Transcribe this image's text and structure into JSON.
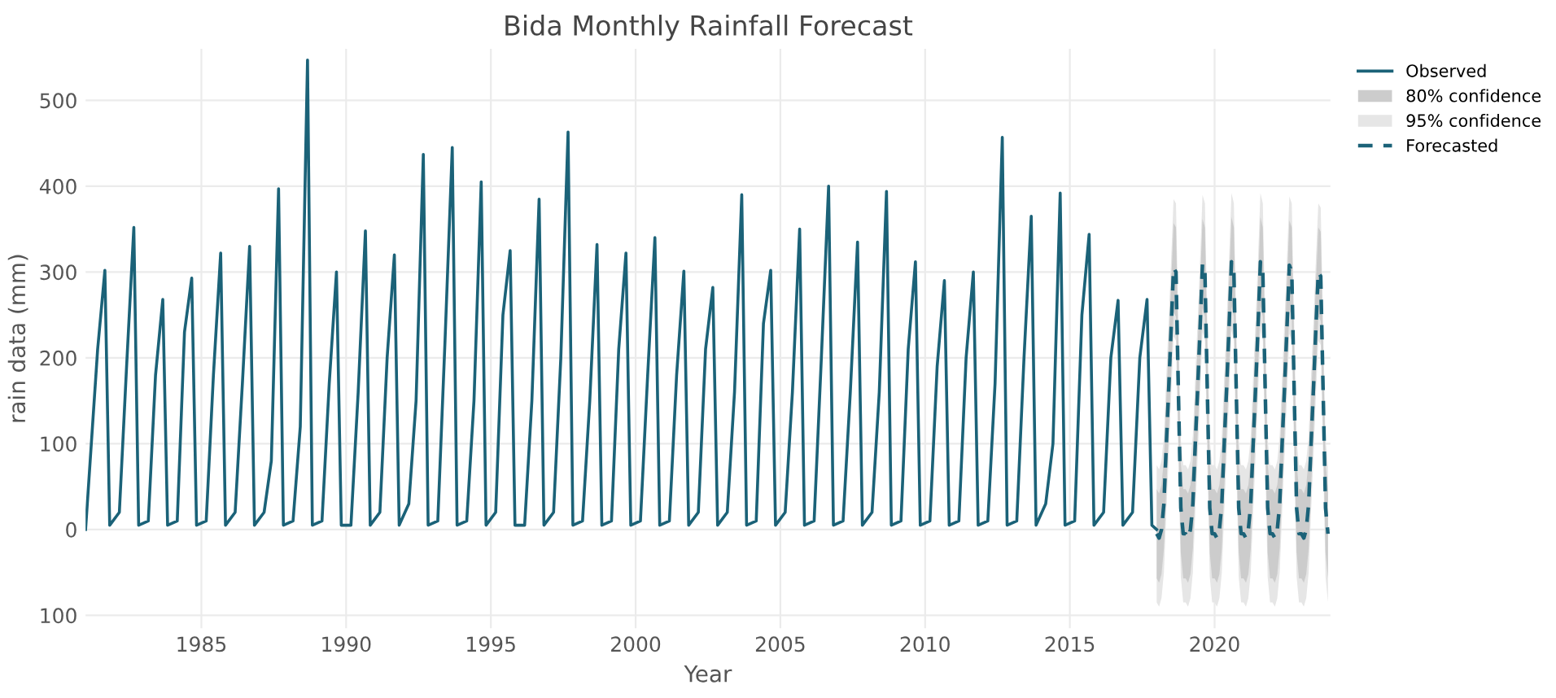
{
  "chart_data": {
    "type": "line",
    "title": "Bida Monthly Rainfall Forecast",
    "xlabel": "Year",
    "ylabel": "rain data (mm)",
    "xlim": [
      "1981-01",
      "2024-01"
    ],
    "ylim": [
      -115,
      560
    ],
    "xticks": [
      "1985",
      "1990",
      "1995",
      "2000",
      "2005",
      "2010",
      "2015",
      "2020"
    ],
    "yticks": [
      {
        "value": -100,
        "label": "100"
      },
      0,
      100,
      200,
      300,
      400,
      500
    ],
    "grid": true,
    "legend": "top right",
    "series": [
      {
        "name": "95% confidence",
        "color": "#e6e6e6",
        "x": [
          "2018-01",
          "2018-02",
          "2018-03",
          "2018-04",
          "2018-05",
          "2018-06",
          "2018-07",
          "2018-08",
          "2018-09",
          "2018-10",
          "2018-11",
          "2018-12",
          "2019-01",
          "2019-02",
          "2019-03",
          "2019-04",
          "2019-05",
          "2019-06",
          "2019-07",
          "2019-08",
          "2019-09",
          "2019-10",
          "2019-11",
          "2019-12",
          "2020-01",
          "2020-02",
          "2020-03",
          "2020-04",
          "2020-05",
          "2020-06",
          "2020-07",
          "2020-08",
          "2020-09",
          "2020-10",
          "2020-11",
          "2020-12",
          "2021-01",
          "2021-02",
          "2021-03",
          "2021-04",
          "2021-05",
          "2021-06",
          "2021-07",
          "2021-08",
          "2021-09",
          "2021-10",
          "2021-11",
          "2021-12",
          "2022-01",
          "2022-02",
          "2022-03",
          "2022-04",
          "2022-05",
          "2022-06",
          "2022-07",
          "2022-08",
          "2022-09",
          "2022-10",
          "2022-11",
          "2022-12",
          "2023-01",
          "2023-02",
          "2023-03",
          "2023-04",
          "2023-05",
          "2023-06",
          "2023-07",
          "2023-08",
          "2023-09",
          "2023-10",
          "2023-11",
          "2023-12"
        ],
        "values": [
          null,
          null,
          null,
          null,
          null,
          null,
          null,
          null,
          null,
          null,
          null,
          null,
          null,
          null,
          null,
          null,
          null,
          null,
          null,
          null,
          null,
          null,
          null,
          null,
          null,
          null,
          null,
          null,
          null,
          null,
          null,
          null,
          null,
          null,
          null,
          null,
          null,
          null,
          null,
          null,
          null,
          null,
          null,
          null,
          null,
          null,
          null,
          null,
          null,
          null,
          null,
          null,
          null,
          null,
          null,
          null,
          null,
          null,
          null,
          null,
          null,
          null,
          null,
          null,
          null,
          null,
          null,
          null,
          null,
          null,
          null,
          null
        ],
        "lower": [
          -85,
          -90,
          -80,
          -50,
          20,
          85,
          155,
          225,
          220,
          80,
          -55,
          -85,
          -85,
          -90,
          -80,
          -50,
          20,
          85,
          155,
          230,
          220,
          80,
          -55,
          -85,
          -85,
          -90,
          -80,
          -50,
          20,
          85,
          155,
          232,
          220,
          80,
          -55,
          -85,
          -85,
          -90,
          -80,
          -50,
          20,
          85,
          155,
          232,
          220,
          80,
          -55,
          -85,
          -85,
          -90,
          -80,
          -50,
          20,
          85,
          155,
          228,
          220,
          80,
          -55,
          -85,
          -85,
          -90,
          -80,
          -50,
          20,
          85,
          155,
          220,
          215,
          80,
          -55,
          -85
        ],
        "upper": [
          75,
          70,
          80,
          110,
          180,
          245,
          315,
          385,
          380,
          240,
          105,
          75,
          75,
          70,
          80,
          110,
          180,
          245,
          315,
          390,
          380,
          240,
          105,
          75,
          75,
          70,
          80,
          110,
          180,
          245,
          315,
          392,
          380,
          240,
          105,
          75,
          75,
          70,
          80,
          110,
          180,
          245,
          315,
          392,
          380,
          240,
          105,
          75,
          75,
          70,
          80,
          110,
          180,
          245,
          315,
          388,
          380,
          240,
          105,
          75,
          75,
          70,
          80,
          110,
          180,
          245,
          315,
          380,
          375,
          240,
          105,
          75
        ]
      },
      {
        "name": "80% confidence",
        "color": "#cccccc",
        "x": [
          "2018-01",
          "2018-02",
          "2018-03",
          "2018-04",
          "2018-05",
          "2018-06",
          "2018-07",
          "2018-08",
          "2018-09",
          "2018-10",
          "2018-11",
          "2018-12",
          "2019-01",
          "2019-02",
          "2019-03",
          "2019-04",
          "2019-05",
          "2019-06",
          "2019-07",
          "2019-08",
          "2019-09",
          "2019-10",
          "2019-11",
          "2019-12",
          "2020-01",
          "2020-02",
          "2020-03",
          "2020-04",
          "2020-05",
          "2020-06",
          "2020-07",
          "2020-08",
          "2020-09",
          "2020-10",
          "2020-11",
          "2020-12",
          "2021-01",
          "2021-02",
          "2021-03",
          "2021-04",
          "2021-05",
          "2021-06",
          "2021-07",
          "2021-08",
          "2021-09",
          "2021-10",
          "2021-11",
          "2021-12",
          "2022-01",
          "2022-02",
          "2022-03",
          "2022-04",
          "2022-05",
          "2022-06",
          "2022-07",
          "2022-08",
          "2022-09",
          "2022-10",
          "2022-11",
          "2022-12",
          "2023-01",
          "2023-02",
          "2023-03",
          "2023-04",
          "2023-05",
          "2023-06",
          "2023-07",
          "2023-08",
          "2023-09",
          "2023-10",
          "2023-11",
          "2023-12"
        ],
        "values": [
          null,
          null,
          null,
          null,
          null,
          null,
          null,
          null,
          null,
          null,
          null,
          null,
          null,
          null,
          null,
          null,
          null,
          null,
          null,
          null,
          null,
          null,
          null,
          null,
          null,
          null,
          null,
          null,
          null,
          null,
          null,
          null,
          null,
          null,
          null,
          null,
          null,
          null,
          null,
          null,
          null,
          null,
          null,
          null,
          null,
          null,
          null,
          null,
          null,
          null,
          null,
          null,
          null,
          null,
          null,
          null,
          null,
          null,
          null,
          null,
          null,
          null,
          null,
          null,
          null,
          null,
          null,
          null,
          null,
          null,
          null,
          null
        ],
        "lower": [
          -57,
          -62,
          -52,
          -22,
          48,
          113,
          183,
          253,
          248,
          108,
          -27,
          -57,
          -57,
          -62,
          -52,
          -22,
          48,
          113,
          183,
          258,
          248,
          108,
          -27,
          -57,
          -57,
          -62,
          -52,
          -22,
          48,
          113,
          183,
          260,
          248,
          108,
          -27,
          -57,
          -57,
          -62,
          -52,
          -22,
          48,
          113,
          183,
          260,
          248,
          108,
          -27,
          -57,
          -57,
          -62,
          -52,
          -22,
          48,
          113,
          183,
          256,
          248,
          108,
          -27,
          -57,
          -57,
          -62,
          -52,
          -22,
          48,
          113,
          183,
          248,
          243,
          108,
          -27,
          -57
        ],
        "upper": [
          47,
          42,
          52,
          82,
          152,
          217,
          287,
          357,
          352,
          212,
          77,
          47,
          47,
          42,
          52,
          82,
          152,
          217,
          287,
          362,
          352,
          212,
          77,
          47,
          47,
          42,
          52,
          82,
          152,
          217,
          287,
          364,
          352,
          212,
          77,
          47,
          47,
          42,
          52,
          82,
          152,
          217,
          287,
          364,
          352,
          212,
          77,
          47,
          47,
          42,
          52,
          82,
          152,
          217,
          287,
          360,
          352,
          212,
          77,
          47,
          47,
          42,
          52,
          82,
          152,
          217,
          287,
          352,
          347,
          212,
          77,
          47
        ]
      },
      {
        "name": "Observed",
        "color": "#1b6278",
        "line_style": "solid",
        "x": [
          "1981-01",
          "1981-06",
          "1981-09",
          "1981-11",
          "1982-03",
          "1982-06",
          "1982-09",
          "1982-11",
          "1983-03",
          "1983-06",
          "1983-09",
          "1983-11",
          "1984-03",
          "1984-06",
          "1984-09",
          "1984-11",
          "1985-03",
          "1985-06",
          "1985-09",
          "1985-11",
          "1986-03",
          "1986-06",
          "1986-09",
          "1986-11",
          "1987-03",
          "1987-06",
          "1987-09",
          "1987-11",
          "1988-03",
          "1988-06",
          "1988-09",
          "1988-11",
          "1989-03",
          "1989-06",
          "1989-09",
          "1989-11",
          "1990-03",
          "1990-06",
          "1990-09",
          "1990-11",
          "1991-03",
          "1991-06",
          "1991-09",
          "1991-11",
          "1992-03",
          "1992-06",
          "1992-09",
          "1992-11",
          "1993-03",
          "1993-06",
          "1993-09",
          "1993-11",
          "1994-03",
          "1994-06",
          "1994-09",
          "1994-11",
          "1995-03",
          "1995-06",
          "1995-09",
          "1995-11",
          "1996-03",
          "1996-06",
          "1996-09",
          "1996-11",
          "1997-03",
          "1997-06",
          "1997-09",
          "1997-11",
          "1998-03",
          "1998-06",
          "1998-09",
          "1998-11",
          "1999-03",
          "1999-06",
          "1999-09",
          "1999-11",
          "2000-03",
          "2000-06",
          "2000-09",
          "2000-11",
          "2001-03",
          "2001-06",
          "2001-09",
          "2001-11",
          "2002-03",
          "2002-06",
          "2002-09",
          "2002-11",
          "2003-03",
          "2003-06",
          "2003-09",
          "2003-11",
          "2004-03",
          "2004-06",
          "2004-09",
          "2004-11",
          "2005-03",
          "2005-06",
          "2005-09",
          "2005-11",
          "2006-03",
          "2006-06",
          "2006-09",
          "2006-11",
          "2007-03",
          "2007-06",
          "2007-09",
          "2007-11",
          "2008-03",
          "2008-06",
          "2008-09",
          "2008-11",
          "2009-03",
          "2009-06",
          "2009-09",
          "2009-11",
          "2010-03",
          "2010-06",
          "2010-09",
          "2010-11",
          "2011-03",
          "2011-06",
          "2011-09",
          "2011-11",
          "2012-03",
          "2012-06",
          "2012-09",
          "2012-11",
          "2013-03",
          "2013-06",
          "2013-09",
          "2013-11",
          "2014-03",
          "2014-06",
          "2014-09",
          "2014-11",
          "2015-03",
          "2015-06",
          "2015-09",
          "2015-11",
          "2016-03",
          "2016-06",
          "2016-09",
          "2016-11",
          "2017-03",
          "2017-06",
          "2017-09",
          "2017-11",
          "2018-01"
        ],
        "values": [
          0,
          210,
          302,
          5,
          20,
          190,
          352,
          5,
          10,
          180,
          268,
          5,
          10,
          230,
          293,
          5,
          10,
          180,
          322,
          5,
          20,
          170,
          330,
          5,
          20,
          80,
          397,
          5,
          10,
          120,
          547,
          5,
          10,
          170,
          300,
          5,
          5,
          160,
          348,
          5,
          20,
          200,
          320,
          5,
          30,
          150,
          437,
          5,
          10,
          220,
          445,
          5,
          10,
          150,
          405,
          5,
          20,
          250,
          325,
          5,
          5,
          150,
          385,
          5,
          20,
          200,
          463,
          5,
          10,
          150,
          332,
          5,
          10,
          210,
          322,
          5,
          10,
          180,
          340,
          5,
          10,
          180,
          301,
          5,
          20,
          210,
          282,
          5,
          20,
          160,
          390,
          5,
          10,
          240,
          302,
          5,
          20,
          160,
          350,
          5,
          10,
          200,
          400,
          5,
          10,
          160,
          335,
          5,
          20,
          160,
          394,
          5,
          10,
          210,
          312,
          5,
          10,
          190,
          290,
          5,
          10,
          200,
          300,
          5,
          10,
          170,
          457,
          5,
          10,
          200,
          365,
          5,
          30,
          100,
          392,
          5,
          10,
          250,
          344,
          5,
          20,
          200,
          267,
          5,
          20,
          200,
          268,
          5,
          0
        ]
      },
      {
        "name": "Forecasted",
        "color": "#1b6278",
        "line_style": "dashed",
        "x": [
          "2018-01",
          "2018-02",
          "2018-03",
          "2018-04",
          "2018-05",
          "2018-06",
          "2018-07",
          "2018-08",
          "2018-09",
          "2018-10",
          "2018-11",
          "2018-12",
          "2019-01",
          "2019-02",
          "2019-03",
          "2019-04",
          "2019-05",
          "2019-06",
          "2019-07",
          "2019-08",
          "2019-09",
          "2019-10",
          "2019-11",
          "2019-12",
          "2020-01",
          "2020-02",
          "2020-03",
          "2020-04",
          "2020-05",
          "2020-06",
          "2020-07",
          "2020-08",
          "2020-09",
          "2020-10",
          "2020-11",
          "2020-12",
          "2021-01",
          "2021-02",
          "2021-03",
          "2021-04",
          "2021-05",
          "2021-06",
          "2021-07",
          "2021-08",
          "2021-09",
          "2021-10",
          "2021-11",
          "2021-12",
          "2022-01",
          "2022-02",
          "2022-03",
          "2022-04",
          "2022-05",
          "2022-06",
          "2022-07",
          "2022-08",
          "2022-09",
          "2022-10",
          "2022-11",
          "2022-12",
          "2023-01",
          "2023-02",
          "2023-03",
          "2023-04",
          "2023-05",
          "2023-06",
          "2023-07",
          "2023-08",
          "2023-09",
          "2023-10",
          "2023-11",
          "2023-12"
        ],
        "values": [
          -5,
          -10,
          0,
          30,
          100,
          165,
          235,
          305,
          300,
          160,
          25,
          -5,
          -5,
          -10,
          0,
          30,
          100,
          165,
          235,
          310,
          300,
          160,
          25,
          -5,
          -5,
          -10,
          0,
          30,
          100,
          165,
          235,
          312,
          300,
          160,
          25,
          -5,
          -5,
          -10,
          0,
          30,
          100,
          165,
          235,
          312,
          300,
          160,
          25,
          -5,
          -5,
          -10,
          0,
          30,
          100,
          165,
          235,
          308,
          300,
          160,
          25,
          -5,
          -5,
          -10,
          0,
          30,
          100,
          165,
          235,
          300,
          295,
          160,
          25,
          -5
        ]
      }
    ]
  }
}
